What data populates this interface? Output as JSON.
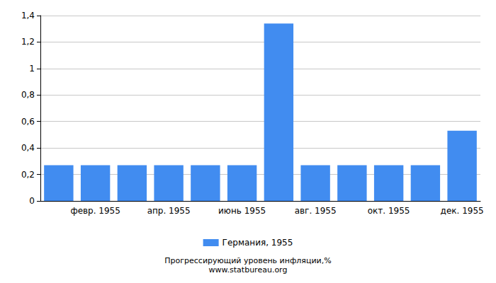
{
  "chart_data": {
    "type": "bar",
    "title": "Прогрессирующий уровень инфляции,%",
    "subtitle": "www.statbureau.org",
    "categories": [
      null,
      "февр. 1955",
      null,
      "апр. 1955",
      null,
      "июнь 1955",
      null,
      "авг. 1955",
      null,
      "окт. 1955",
      null,
      "дек. 1955"
    ],
    "series": [
      {
        "name": "Германия, 1955",
        "color": "#418cf0",
        "values": [
          0.27,
          0.27,
          0.27,
          0.27,
          0.27,
          0.27,
          1.34,
          0.27,
          0.27,
          0.27,
          0.27,
          0.53
        ]
      }
    ],
    "ylim": [
      0,
      1.4
    ],
    "yticks": [
      0,
      {
        "value": 0.2,
        "label": "0,2"
      },
      {
        "value": 0.4,
        "label": "0,4"
      },
      {
        "value": 0.6,
        "label": "0,6"
      },
      {
        "value": 0.8,
        "label": "0,8"
      },
      1,
      {
        "value": 1.2,
        "label": "1,2"
      },
      {
        "value": 1.4,
        "label": "1,4"
      }
    ],
    "grid": true,
    "legend": "bottom"
  }
}
